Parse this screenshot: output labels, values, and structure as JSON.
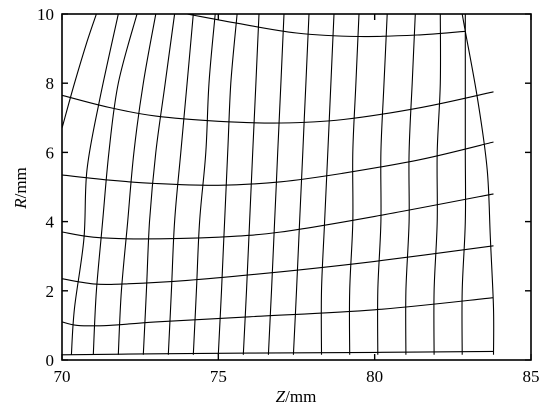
{
  "chart_data": {
    "type": "line",
    "xlabel_var": "Z",
    "xlabel_unit": "/mm",
    "ylabel_var": "R",
    "ylabel_unit": "/mm",
    "xlim": [
      70,
      85
    ],
    "ylim": [
      0,
      10
    ],
    "x_ticks": [
      70,
      75,
      80,
      85
    ],
    "y_ticks": [
      0,
      2,
      4,
      6,
      8,
      10
    ],
    "x_tick_labels": [
      "70",
      "75",
      "80",
      "85"
    ],
    "y_tick_labels": [
      "0",
      "2",
      "4",
      "6",
      "8",
      "10"
    ],
    "grid": false,
    "mesh_lines": {
      "radial": [
        [
          [
            70.0,
            6.7
          ],
          [
            70.4,
            8.0
          ],
          [
            70.8,
            9.2
          ],
          [
            71.1,
            10.0
          ]
        ],
        [
          [
            70.3,
            0.15
          ],
          [
            70.4,
            1.5
          ],
          [
            70.7,
            3.5
          ],
          [
            70.8,
            5.5
          ],
          [
            71.2,
            7.5
          ],
          [
            71.8,
            10.0
          ]
        ],
        [
          [
            71.0,
            0.15
          ],
          [
            71.1,
            2.0
          ],
          [
            71.3,
            4.0
          ],
          [
            71.5,
            6.0
          ],
          [
            71.8,
            8.0
          ],
          [
            72.4,
            10.0
          ]
        ],
        [
          [
            71.8,
            0.15
          ],
          [
            71.9,
            2.0
          ],
          [
            72.1,
            4.0
          ],
          [
            72.3,
            6.0
          ],
          [
            72.6,
            8.0
          ],
          [
            73.0,
            10.0
          ]
        ],
        [
          [
            72.6,
            0.15
          ],
          [
            72.7,
            2.0
          ],
          [
            72.8,
            4.0
          ],
          [
            73.0,
            6.0
          ],
          [
            73.3,
            8.0
          ],
          [
            73.6,
            10.0
          ]
        ],
        [
          [
            73.4,
            0.15
          ],
          [
            73.5,
            2.0
          ],
          [
            73.6,
            4.0
          ],
          [
            73.8,
            6.0
          ],
          [
            74.0,
            8.0
          ],
          [
            74.2,
            10.0
          ]
        ],
        [
          [
            74.2,
            0.15
          ],
          [
            74.3,
            2.0
          ],
          [
            74.4,
            4.0
          ],
          [
            74.6,
            6.0
          ],
          [
            74.7,
            8.0
          ],
          [
            74.9,
            10.0
          ]
        ],
        [
          [
            75.0,
            0.15
          ],
          [
            75.1,
            2.0
          ],
          [
            75.2,
            4.0
          ],
          [
            75.3,
            6.0
          ],
          [
            75.4,
            8.0
          ],
          [
            75.6,
            10.0
          ]
        ],
        [
          [
            75.8,
            0.15
          ],
          [
            75.9,
            2.0
          ],
          [
            76.0,
            4.0
          ],
          [
            76.1,
            6.0
          ],
          [
            76.2,
            8.0
          ],
          [
            76.3,
            10.0
          ]
        ],
        [
          [
            76.6,
            0.15
          ],
          [
            76.7,
            2.0
          ],
          [
            76.8,
            4.0
          ],
          [
            76.9,
            6.0
          ],
          [
            77.0,
            8.0
          ],
          [
            77.1,
            10.0
          ]
        ],
        [
          [
            77.4,
            0.15
          ],
          [
            77.5,
            2.0
          ],
          [
            77.6,
            4.0
          ],
          [
            77.7,
            6.0
          ],
          [
            77.8,
            8.0
          ],
          [
            77.9,
            10.0
          ]
        ],
        [
          [
            78.3,
            0.15
          ],
          [
            78.3,
            2.0
          ],
          [
            78.4,
            4.0
          ],
          [
            78.5,
            6.0
          ],
          [
            78.6,
            8.0
          ],
          [
            78.7,
            10.0
          ]
        ],
        [
          [
            79.2,
            0.15
          ],
          [
            79.2,
            2.0
          ],
          [
            79.3,
            4.0
          ],
          [
            79.3,
            6.0
          ],
          [
            79.4,
            8.0
          ],
          [
            79.5,
            10.0
          ]
        ],
        [
          [
            80.1,
            0.15
          ],
          [
            80.1,
            2.0
          ],
          [
            80.2,
            4.0
          ],
          [
            80.2,
            6.0
          ],
          [
            80.3,
            8.0
          ],
          [
            80.4,
            10.0
          ]
        ],
        [
          [
            81.0,
            0.15
          ],
          [
            81.0,
            2.0
          ],
          [
            81.1,
            4.0
          ],
          [
            81.1,
            6.0
          ],
          [
            81.2,
            8.0
          ],
          [
            81.3,
            10.0
          ]
        ],
        [
          [
            81.9,
            0.15
          ],
          [
            81.9,
            2.0
          ],
          [
            82.0,
            4.0
          ],
          [
            82.0,
            6.0
          ],
          [
            82.1,
            8.0
          ],
          [
            82.1,
            10.0
          ]
        ],
        [
          [
            82.8,
            0.15
          ],
          [
            82.8,
            2.0
          ],
          [
            82.9,
            4.0
          ],
          [
            82.9,
            6.0
          ],
          [
            82.9,
            8.0
          ],
          [
            82.9,
            10.0
          ]
        ],
        [
          [
            83.8,
            0.15
          ],
          [
            83.8,
            1.5
          ],
          [
            83.7,
            3.5
          ],
          [
            83.6,
            5.5
          ],
          [
            83.3,
            7.5
          ],
          [
            82.9,
            9.5
          ],
          [
            82.8,
            10.0
          ]
        ]
      ],
      "axial": [
        [
          [
            70.0,
            0.15
          ],
          [
            73.0,
            0.18
          ],
          [
            76.0,
            0.2
          ],
          [
            80.0,
            0.22
          ],
          [
            83.8,
            0.25
          ]
        ],
        [
          [
            70.0,
            1.1
          ],
          [
            70.5,
            1.0
          ],
          [
            71.5,
            1.0
          ],
          [
            73.0,
            1.1
          ],
          [
            76.0,
            1.25
          ],
          [
            80.0,
            1.45
          ],
          [
            83.8,
            1.8
          ]
        ],
        [
          [
            70.0,
            2.35
          ],
          [
            71.0,
            2.2
          ],
          [
            72.0,
            2.2
          ],
          [
            74.0,
            2.3
          ],
          [
            77.0,
            2.55
          ],
          [
            80.0,
            2.85
          ],
          [
            83.8,
            3.3
          ]
        ],
        [
          [
            70.0,
            3.7
          ],
          [
            71.0,
            3.55
          ],
          [
            72.5,
            3.5
          ],
          [
            75.0,
            3.55
          ],
          [
            77.0,
            3.7
          ],
          [
            80.0,
            4.15
          ],
          [
            83.8,
            4.8
          ]
        ],
        [
          [
            70.0,
            5.35
          ],
          [
            71.5,
            5.2
          ],
          [
            73.0,
            5.1
          ],
          [
            75.0,
            5.05
          ],
          [
            77.0,
            5.15
          ],
          [
            79.0,
            5.4
          ],
          [
            81.5,
            5.8
          ],
          [
            83.8,
            6.3
          ]
        ],
        [
          [
            70.0,
            7.65
          ],
          [
            71.5,
            7.3
          ],
          [
            73.0,
            7.05
          ],
          [
            75.0,
            6.9
          ],
          [
            77.0,
            6.85
          ],
          [
            79.0,
            6.95
          ],
          [
            81.5,
            7.3
          ],
          [
            83.8,
            7.75
          ]
        ],
        [
          [
            74.0,
            10.0
          ],
          [
            75.5,
            9.75
          ],
          [
            77.5,
            9.45
          ],
          [
            79.5,
            9.35
          ],
          [
            81.5,
            9.4
          ],
          [
            82.9,
            9.5
          ]
        ]
      ]
    }
  }
}
